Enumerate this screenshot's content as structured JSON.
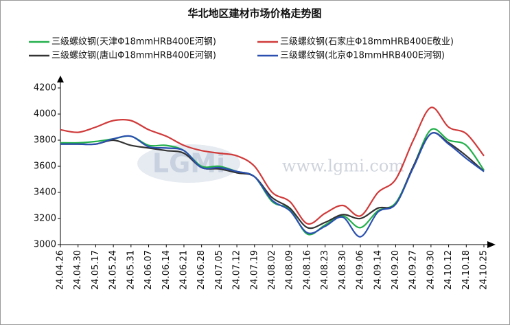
{
  "chart_data": {
    "type": "line",
    "title": "华北地区建材市场价格走势图",
    "watermark": "www.lgmi.com",
    "logo": "LGMi",
    "categories": [
      "24.04.26",
      "24.04.30",
      "24.05.17",
      "24.05.24",
      "24.05.31",
      "24.06.07",
      "24.06.14",
      "24.06.21",
      "24.06.28",
      "24.07.05",
      "24.07.12",
      "24.07.19",
      "24.08.02",
      "24.08.09",
      "24.08.16",
      "24.08.23",
      "24.08.30",
      "24.09.06",
      "24.09.14",
      "24.09.20",
      "24.09.27",
      "24.09.30",
      "24.10.12",
      "24.10.18",
      "24.10.25"
    ],
    "series": [
      {
        "name": "三级螺纹钢(天津Φ18mmHRB400E河钢)",
        "color": "#22b04b",
        "values": [
          3780,
          3780,
          3790,
          3810,
          3830,
          3760,
          3760,
          3720,
          3600,
          3600,
          3560,
          3520,
          3330,
          3270,
          3080,
          3150,
          3220,
          3130,
          3260,
          3320,
          3600,
          3880,
          3800,
          3760,
          3570
        ]
      },
      {
        "name": "三级螺纹钢(石家庄Φ18mmHRB400E敬业)",
        "color": "#d03a3a",
        "values": [
          3880,
          3860,
          3900,
          3950,
          3950,
          3880,
          3830,
          3760,
          3720,
          3700,
          3680,
          3600,
          3400,
          3330,
          3160,
          3240,
          3300,
          3220,
          3400,
          3500,
          3800,
          4050,
          3900,
          3850,
          3680
        ]
      },
      {
        "name": "三级螺纹钢(唐山Φ18mmHRB400E河钢)",
        "color": "#333333",
        "values": [
          3770,
          3770,
          3770,
          3800,
          3760,
          3740,
          3720,
          3700,
          3590,
          3580,
          3550,
          3520,
          3360,
          3280,
          3130,
          3170,
          3230,
          3200,
          3280,
          3310,
          3600,
          3850,
          3780,
          3680,
          3560
        ]
      },
      {
        "name": "三级螺纹钢(北京Φ18mmHRB400E河钢)",
        "color": "#2a4fb0",
        "values": [
          3770,
          3770,
          3770,
          3810,
          3830,
          3750,
          3740,
          3720,
          3590,
          3590,
          3560,
          3520,
          3340,
          3260,
          3090,
          3140,
          3210,
          3060,
          3250,
          3310,
          3590,
          3850,
          3770,
          3660,
          3560
        ]
      }
    ],
    "ylim": [
      3000,
      4200
    ],
    "yticks": [
      3000,
      3200,
      3400,
      3600,
      3800,
      4000,
      4200
    ],
    "grid": false
  }
}
